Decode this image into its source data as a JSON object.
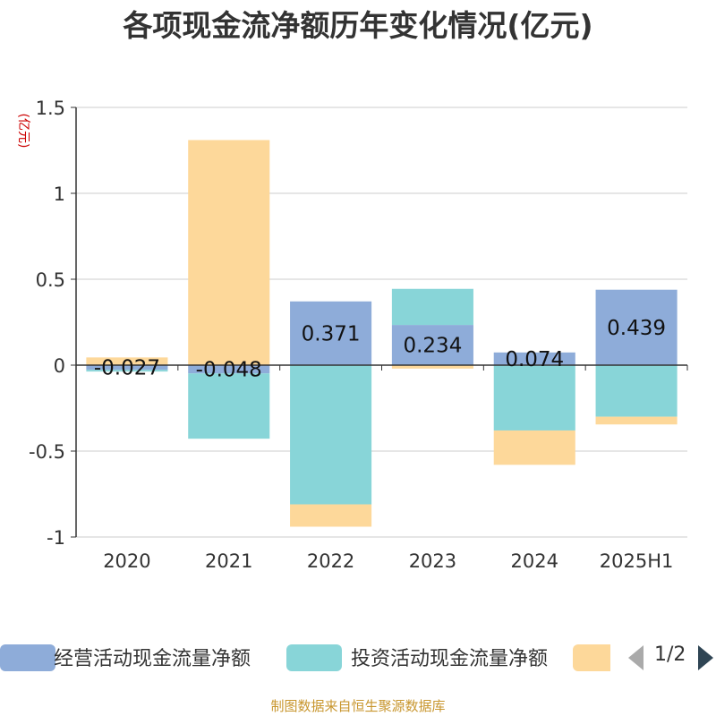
{
  "chart_data": {
    "type": "bar",
    "stacked": true,
    "title": "各项现金流净额历年变化情况(亿元)",
    "ylabel": "(亿元)",
    "xlabel": "",
    "categories": [
      "2020",
      "2021",
      "2022",
      "2023",
      "2024",
      "2025H1"
    ],
    "ylim": [
      -1,
      1.5
    ],
    "yticks": [
      "1.5",
      "1",
      "0.5",
      "0",
      "-0.5",
      "-1"
    ],
    "grid": true,
    "series": [
      {
        "name": "经营活动现金流量净额",
        "color": "#8eacd9",
        "values": [
          -0.027,
          -0.048,
          0.371,
          0.234,
          0.074,
          0.439
        ],
        "labels": [
          "-0.027",
          "-0.048",
          "0.371",
          "0.234",
          "0.074",
          "0.439"
        ]
      },
      {
        "name": "投资活动现金流量净额",
        "color": "#88d5d8",
        "values": [
          -0.01,
          -0.38,
          -0.81,
          0.21,
          -0.38,
          -0.3
        ]
      },
      {
        "name": "",
        "color": "#fdd89a",
        "values": [
          0.045,
          1.31,
          -0.13,
          -0.02,
          -0.2,
          -0.045
        ]
      }
    ]
  },
  "legend": {
    "page": "1/2",
    "prev_icon": "triangle-left-icon",
    "next_icon": "triangle-right-icon"
  },
  "source": "制图数据来自恒生聚源数据库"
}
